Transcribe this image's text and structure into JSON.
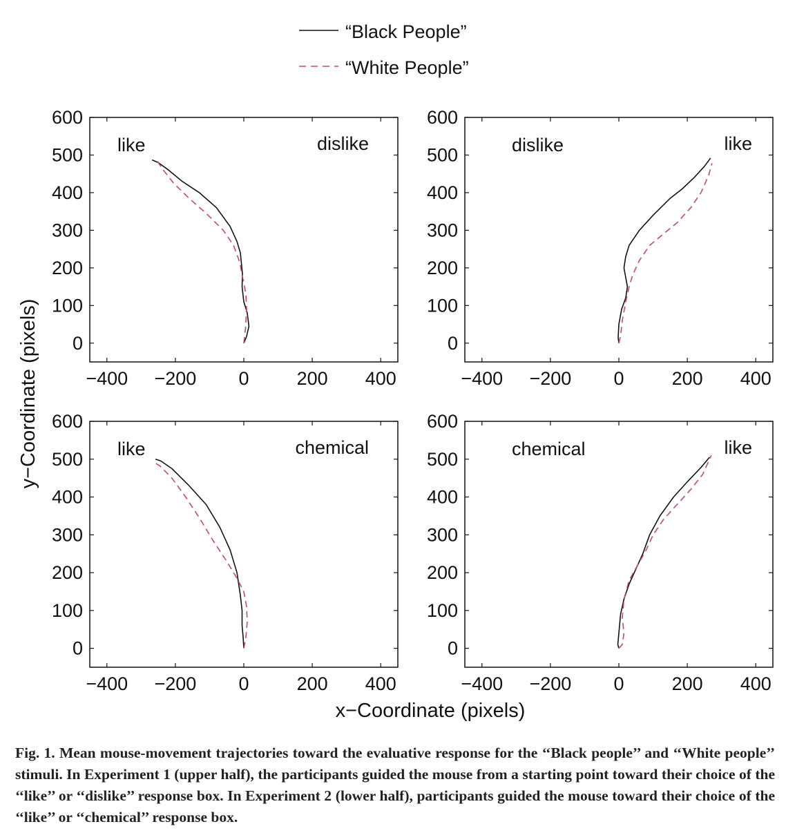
{
  "legend": {
    "black": "“Black People”",
    "white": "“White People”"
  },
  "colors": {
    "black_series": "#111111",
    "white_series": "#c2467a"
  },
  "axes": {
    "xlabel": "x−Coordinate (pixels)",
    "ylabel": "y−Coordinate (pixels)"
  },
  "caption": {
    "lead": "Fig. 1.",
    "text": "Mean mouse-movement trajectories toward the evaluative response for the ‘‘Black people’’ and ‘‘White people’’ stimuli. In Experiment 1 (upper half), the participants guided the mouse from a starting point toward their choice of the ‘‘like’’ or ‘‘dislike’’ response box. In Experiment 2 (lower half), participants guided the mouse toward their choice of the ‘‘like’’ or ‘‘chemical’’ response box."
  },
  "chart_data": [
    {
      "type": "line",
      "labels": {
        "left": "like",
        "right": "dislike"
      },
      "xlim": [
        -450,
        450
      ],
      "ylim": [
        -50,
        600
      ],
      "xticks": [
        -400,
        -200,
        0,
        200,
        400
      ],
      "yticks": [
        0,
        100,
        200,
        300,
        400,
        500,
        600
      ],
      "series": [
        {
          "key": "black",
          "points": [
            [
              0,
              0
            ],
            [
              8,
              18
            ],
            [
              15,
              45
            ],
            [
              10,
              80
            ],
            [
              0,
              110
            ],
            [
              -5,
              150
            ],
            [
              -4,
              185
            ],
            [
              -10,
              240
            ],
            [
              -20,
              270
            ],
            [
              -40,
              310
            ],
            [
              -80,
              360
            ],
            [
              -130,
              400
            ],
            [
              -180,
              430
            ],
            [
              -220,
              460
            ],
            [
              -250,
              480
            ],
            [
              -268,
              487
            ]
          ]
        },
        {
          "key": "white",
          "points": [
            [
              0,
              0
            ],
            [
              5,
              40
            ],
            [
              8,
              90
            ],
            [
              6,
              130
            ],
            [
              0,
              160
            ],
            [
              -5,
              180
            ],
            [
              -12,
              215
            ],
            [
              -30,
              260
            ],
            [
              -60,
              300
            ],
            [
              -110,
              345
            ],
            [
              -160,
              385
            ],
            [
              -205,
              425
            ],
            [
              -235,
              460
            ],
            [
              -250,
              480
            ],
            [
              -258,
              492
            ]
          ]
        }
      ]
    },
    {
      "type": "line",
      "labels": {
        "left": "dislike",
        "right": "like"
      },
      "xlim": [
        -450,
        450
      ],
      "ylim": [
        -50,
        600
      ],
      "xticks": [
        -400,
        -200,
        0,
        200,
        400
      ],
      "yticks": [
        0,
        100,
        200,
        300,
        400,
        500,
        600
      ],
      "series": [
        {
          "key": "black",
          "points": [
            [
              0,
              0
            ],
            [
              -2,
              15
            ],
            [
              0,
              50
            ],
            [
              8,
              90
            ],
            [
              20,
              120
            ],
            [
              25,
              150
            ],
            [
              20,
              175
            ],
            [
              15,
              200
            ],
            [
              20,
              230
            ],
            [
              30,
              260
            ],
            [
              60,
              300
            ],
            [
              100,
              340
            ],
            [
              150,
              385
            ],
            [
              185,
              410
            ],
            [
              220,
              440
            ],
            [
              250,
              470
            ],
            [
              268,
              492
            ]
          ]
        },
        {
          "key": "white",
          "points": [
            [
              0,
              0
            ],
            [
              5,
              20
            ],
            [
              10,
              60
            ],
            [
              20,
              110
            ],
            [
              30,
              150
            ],
            [
              40,
              180
            ],
            [
              60,
              220
            ],
            [
              90,
              260
            ],
            [
              130,
              290
            ],
            [
              170,
              320
            ],
            [
              210,
              360
            ],
            [
              240,
              400
            ],
            [
              262,
              445
            ],
            [
              272,
              478
            ]
          ]
        }
      ]
    },
    {
      "type": "line",
      "labels": {
        "left": "like",
        "right": "chemical"
      },
      "xlim": [
        -450,
        450
      ],
      "ylim": [
        -50,
        600
      ],
      "xticks": [
        -400,
        -200,
        0,
        200,
        400
      ],
      "yticks": [
        0,
        100,
        200,
        300,
        400,
        500,
        600
      ],
      "series": [
        {
          "key": "black",
          "points": [
            [
              0,
              0
            ],
            [
              -2,
              30
            ],
            [
              -5,
              60
            ],
            [
              -5,
              100
            ],
            [
              -10,
              140
            ],
            [
              -20,
              200
            ],
            [
              -40,
              260
            ],
            [
              -70,
              320
            ],
            [
              -110,
              380
            ],
            [
              -160,
              430
            ],
            [
              -210,
              475
            ],
            [
              -242,
              495
            ],
            [
              -258,
              500
            ]
          ]
        },
        {
          "key": "white",
          "points": [
            [
              0,
              0
            ],
            [
              6,
              30
            ],
            [
              10,
              70
            ],
            [
              8,
              110
            ],
            [
              0,
              150
            ],
            [
              -20,
              185
            ],
            [
              -50,
              230
            ],
            [
              -90,
              285
            ],
            [
              -130,
              345
            ],
            [
              -170,
              400
            ],
            [
              -210,
              450
            ],
            [
              -245,
              482
            ],
            [
              -265,
              493
            ]
          ]
        }
      ]
    },
    {
      "type": "line",
      "labels": {
        "left": "chemical",
        "right": "like"
      },
      "xlim": [
        -450,
        450
      ],
      "ylim": [
        -50,
        600
      ],
      "xticks": [
        -400,
        -200,
        0,
        200,
        400
      ],
      "yticks": [
        0,
        100,
        200,
        300,
        400,
        500,
        600
      ],
      "series": [
        {
          "key": "black",
          "points": [
            [
              0,
              0
            ],
            [
              -3,
              10
            ],
            [
              0,
              40
            ],
            [
              5,
              90
            ],
            [
              15,
              130
            ],
            [
              30,
              170
            ],
            [
              50,
              210
            ],
            [
              70,
              250
            ],
            [
              90,
              300
            ],
            [
              120,
              350
            ],
            [
              160,
              400
            ],
            [
              200,
              440
            ],
            [
              240,
              478
            ],
            [
              265,
              505
            ]
          ]
        },
        {
          "key": "white",
          "points": [
            [
              0,
              0
            ],
            [
              10,
              10
            ],
            [
              15,
              40
            ],
            [
              10,
              80
            ],
            [
              15,
              130
            ],
            [
              30,
              180
            ],
            [
              55,
              220
            ],
            [
              80,
              260
            ],
            [
              100,
              300
            ],
            [
              130,
              340
            ],
            [
              170,
              380
            ],
            [
              210,
              420
            ],
            [
              245,
              460
            ],
            [
              265,
              500
            ],
            [
              270,
              510
            ]
          ]
        }
      ]
    }
  ]
}
